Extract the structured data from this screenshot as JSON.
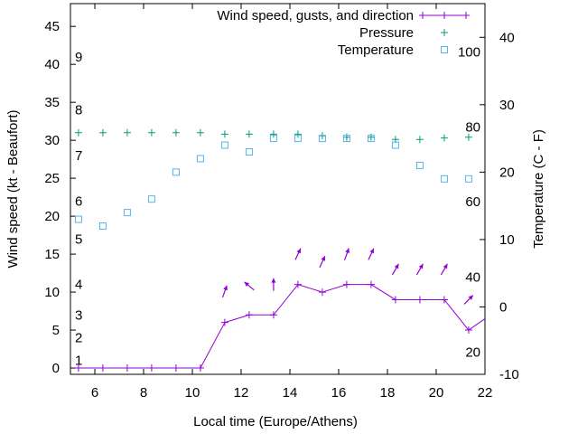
{
  "chart_data": {
    "type": "line",
    "xlabel": "Local time (Europe/Athens)",
    "ylabel": "Wind speed (kt - Beaufort)",
    "y2label": "Temperature (C - F)",
    "xlim": [
      5,
      22
    ],
    "ylim": [
      -0.83,
      48
    ],
    "y2lim": [
      -10,
      45
    ],
    "xticks": [
      6,
      8,
      10,
      12,
      14,
      16,
      18,
      20,
      22
    ],
    "yticks": [
      0,
      5,
      10,
      15,
      20,
      25,
      30,
      35,
      40,
      45
    ],
    "y2ticks": [
      -10,
      0,
      10,
      20,
      30,
      40
    ],
    "beaufort_labels": [
      {
        "label": "1",
        "kt": 1
      },
      {
        "label": "2",
        "kt": 4
      },
      {
        "label": "3",
        "kt": 7
      },
      {
        "label": "4",
        "kt": 11
      },
      {
        "label": "5",
        "kt": 17
      },
      {
        "label": "6",
        "kt": 22
      },
      {
        "label": "7",
        "kt": 28
      },
      {
        "label": "8",
        "kt": 34
      },
      {
        "label": "9",
        "kt": 41
      }
    ],
    "fahrenheit_labels": [
      {
        "label": "100",
        "c": 37.8
      },
      {
        "label": "80",
        "c": 26.7
      },
      {
        "label": "60",
        "c": 15.6
      },
      {
        "label": "40",
        "c": 4.4
      },
      {
        "label": "20",
        "c": -6.7
      }
    ],
    "legend": {
      "placement": "top-right",
      "entries": [
        "Wind speed, gusts, and direction",
        "Pressure",
        "Temperature"
      ]
    },
    "x": [
      5.33,
      6.33,
      7.33,
      8.33,
      9.33,
      10.33,
      11.33,
      12.33,
      13.33,
      14.33,
      15.33,
      16.33,
      17.33,
      18.33,
      19.33,
      20.33,
      21.33
    ],
    "series": [
      {
        "name": "Wind speed, gusts, and direction",
        "axis": "y",
        "color": "#9400d3",
        "values": [
          0,
          0,
          0,
          0,
          0,
          0,
          6,
          7,
          7,
          11,
          10,
          11,
          11,
          9,
          9,
          9,
          5
        ],
        "extends_to": {
          "x": 22,
          "y": 6.5
        }
      },
      {
        "name": "Pressure",
        "axis": "y",
        "color": "#009e73",
        "values": [
          31.0,
          31.0,
          31.0,
          31.0,
          31.0,
          31.0,
          30.8,
          30.8,
          30.8,
          30.8,
          30.6,
          30.4,
          30.4,
          30.1,
          30.1,
          30.3,
          30.4
        ]
      },
      {
        "name": "Temperature",
        "axis": "y2",
        "color": "#56b4e9",
        "values": [
          13,
          12,
          14,
          16,
          20,
          22,
          24,
          23,
          25,
          25,
          25,
          25,
          25,
          24,
          21,
          19,
          19
        ]
      }
    ],
    "wind_direction_arrows": [
      {
        "x": 11.33,
        "kt": 10.1,
        "toward_deg": 20
      },
      {
        "x": 12.33,
        "kt": 10.8,
        "toward_deg": -50
      },
      {
        "x": 13.33,
        "kt": 11,
        "toward_deg": 0
      },
      {
        "x": 14.33,
        "kt": 15,
        "toward_deg": 25
      },
      {
        "x": 15.33,
        "kt": 14,
        "toward_deg": 25
      },
      {
        "x": 16.33,
        "kt": 15,
        "toward_deg": 20
      },
      {
        "x": 17.33,
        "kt": 15,
        "toward_deg": 25
      },
      {
        "x": 18.33,
        "kt": 13,
        "toward_deg": 30
      },
      {
        "x": 19.33,
        "kt": 13,
        "toward_deg": 30
      },
      {
        "x": 20.33,
        "kt": 13,
        "toward_deg": 30
      },
      {
        "x": 21.33,
        "kt": 9,
        "toward_deg": 45
      }
    ]
  }
}
